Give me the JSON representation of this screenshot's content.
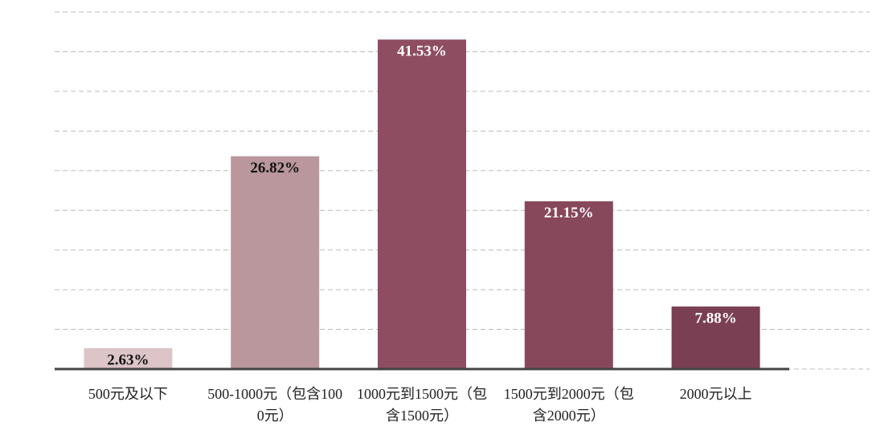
{
  "chart_data": {
    "type": "bar",
    "categories": [
      "500元及以下",
      "500-1000元（包含1000元）",
      "1000元到1500元（包含1500元）",
      "1500元到2000元（包含2000元）",
      "2000元以上"
    ],
    "values": [
      2.63,
      26.82,
      41.53,
      21.15,
      7.88
    ],
    "value_labels": [
      "2.63%",
      "26.82%",
      "41.53%",
      "21.15%",
      "7.88%"
    ],
    "colors": [
      "#dcc4c9",
      "#b9979d",
      "#8f4d62",
      "#87485c",
      "#7a3f52"
    ],
    "ylim": [
      0,
      45
    ],
    "yticks": [
      0,
      5,
      10,
      15,
      20,
      25,
      30,
      35,
      40,
      45
    ],
    "grid": true
  }
}
